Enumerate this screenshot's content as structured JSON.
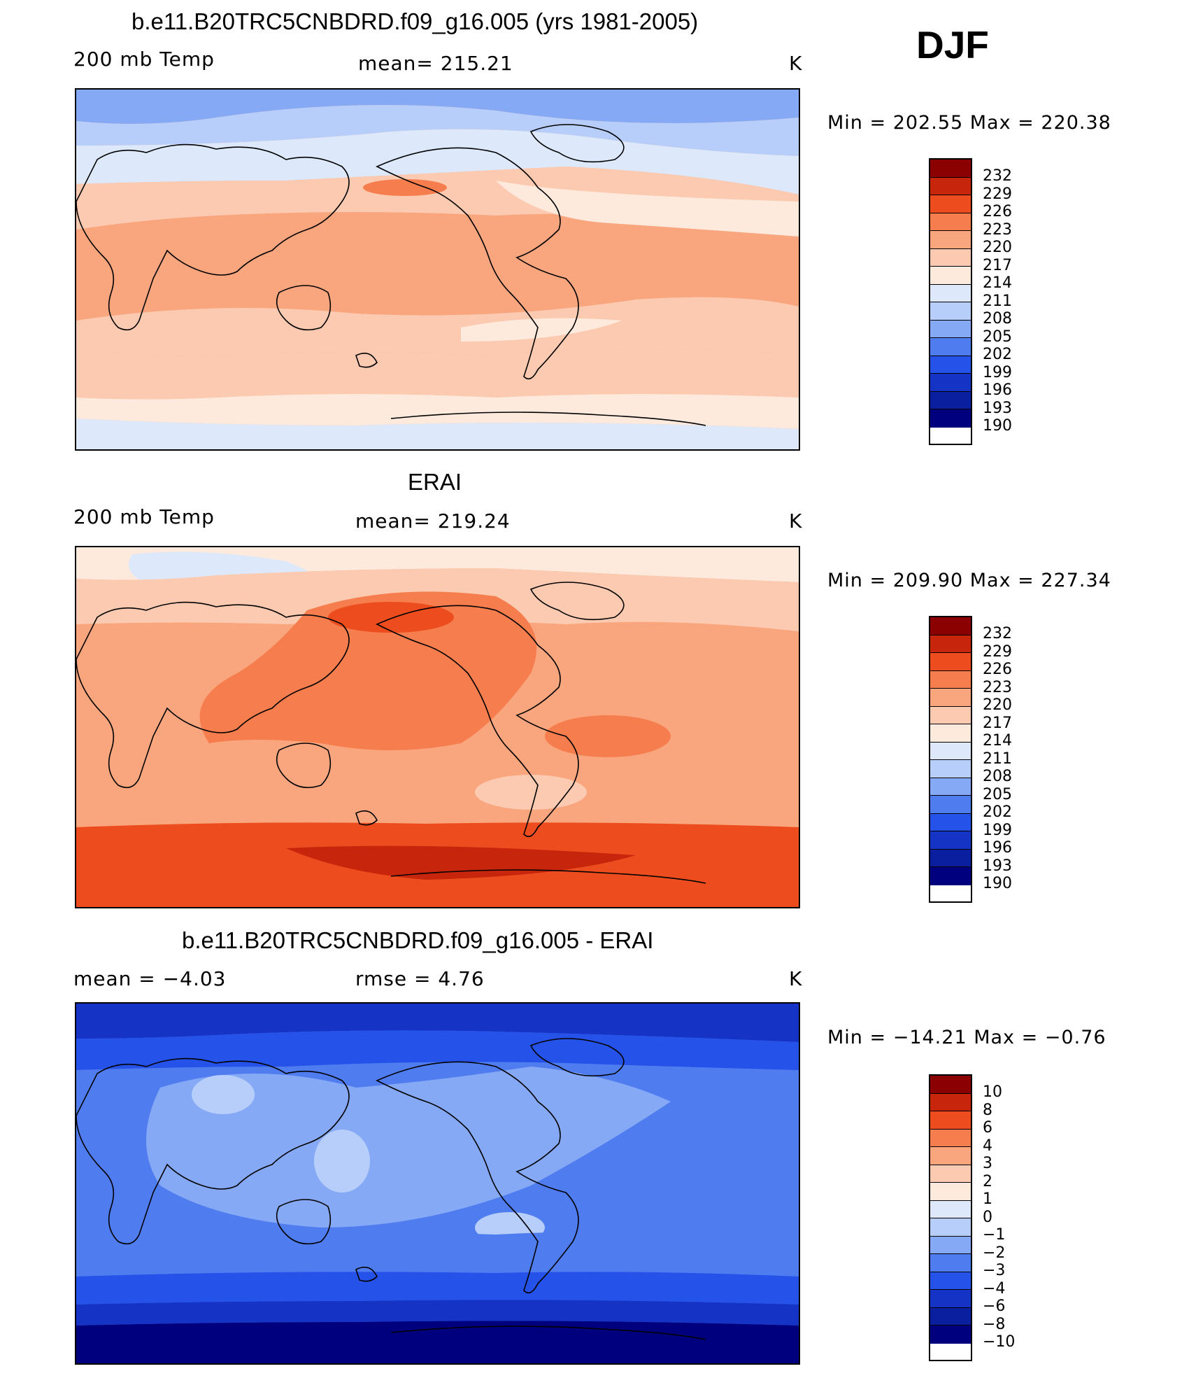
{
  "season": "DJF",
  "colors": {
    "abs_scale": [
      "#00007f",
      "#0a1fa0",
      "#1533c4",
      "#2552e8",
      "#4f7df0",
      "#86a9f5",
      "#b7cefa",
      "#dde9fb",
      "#fdeadd",
      "#fccab0",
      "#f9a67f",
      "#f67d4d",
      "#ed4d1e",
      "#c8250d",
      "#8b0000"
    ],
    "diff_scale": [
      "#00007f",
      "#0a1fa0",
      "#1533c4",
      "#2552e8",
      "#4f7df0",
      "#86a9f5",
      "#b7cefa",
      "#dde9fb",
      "#fdeadd",
      "#fccab0",
      "#f9a67f",
      "#f67d4d",
      "#ed4d1e",
      "#c8250d",
      "#8b0000"
    ]
  },
  "panels": [
    {
      "title": "b.e11.B20TRC5CNBDRD.f09_g16.005 (yrs 1981-2005)",
      "left_label": "200 mb Temp",
      "center_label": "mean= 215.21",
      "units": "K",
      "minmax": "Min  =  202.55  Max  =  220.38",
      "ticks": [
        "232",
        "229",
        "226",
        "223",
        "220",
        "217",
        "214",
        "211",
        "208",
        "205",
        "202",
        "199",
        "196",
        "193",
        "190"
      ]
    },
    {
      "title": "ERAI",
      "left_label": "200 mb Temp",
      "center_label": "mean= 219.24",
      "units": "K",
      "minmax": "Min  =  209.90  Max  =  227.34",
      "ticks": [
        "232",
        "229",
        "226",
        "223",
        "220",
        "217",
        "214",
        "211",
        "208",
        "205",
        "202",
        "199",
        "196",
        "193",
        "190"
      ]
    },
    {
      "title": "b.e11.B20TRC5CNBDRD.f09_g16.005 - ERAI",
      "left_label": "mean =    −4.03",
      "center_label": "rmse =     4.76",
      "units": "K",
      "minmax": "Min  =  −14.21  Max  =    −0.76",
      "ticks": [
        "10",
        "8",
        "6",
        "4",
        "3",
        "2",
        "1",
        "0",
        "−1",
        "−2",
        "−3",
        "−4",
        "−6",
        "−8",
        "−10"
      ]
    }
  ]
}
